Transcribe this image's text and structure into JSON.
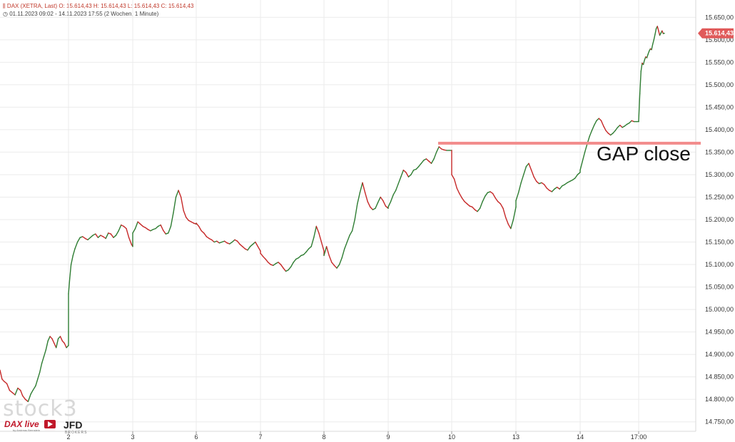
{
  "header": {
    "line1": "DAX (XETRA, Last)   O: 15.614,43   H: 15.614,43   L: 15.614,43   C: 15.614,43",
    "line2": "01.11.2023 09:02 - 14.11.2023 17:55   (2 Wochen, 1 Minute)"
  },
  "price_label": "15.614,43",
  "annotation": "GAP close",
  "logos": {
    "stock3": "stock3",
    "daxlive": "DAX live",
    "daxlive_sub": "by Andreas Bernstein",
    "jfd": "JFD",
    "jfd_sub": "BROKERS"
  },
  "colors": {
    "up": "#2e7d32",
    "down": "#c62828",
    "gap_line": "#f28b8b",
    "price_tag": "#e05a5a",
    "grid": "#ebebeb"
  },
  "chart_data": {
    "type": "line",
    "title": "DAX (XETRA, Last)",
    "subtitle": "01.11.2023 09:02 - 14.11.2023 17:55 (2 Wochen, 1 Minute)",
    "xlabel": "",
    "ylabel": "",
    "ylim": [
      14740,
      15660
    ],
    "yticks": [
      14750,
      14800,
      14850,
      14900,
      14950,
      15000,
      15050,
      15100,
      15150,
      15200,
      15250,
      15300,
      15350,
      15400,
      15450,
      15500,
      15550,
      15600,
      15650
    ],
    "ytick_labels": [
      "14.750,00",
      "14.800,00",
      "14.850,00",
      "14.900,00",
      "14.950,00",
      "15.000,00",
      "15.050,00",
      "15.100,00",
      "15.150,00",
      "15.200,00",
      "15.250,00",
      "15.300,00",
      "15.350,00",
      "15.400,00",
      "15.450,00",
      "15.500,00",
      "15.550,00",
      "15.600,00",
      "15.650,00"
    ],
    "xlim": [
      0,
      10.96
    ],
    "xticks": [
      1,
      2,
      3,
      4,
      5,
      6,
      7,
      8,
      9,
      10
    ],
    "xtick_labels": [
      "2",
      "3",
      "6",
      "7",
      "8",
      "9",
      "10",
      "13",
      "14",
      "17:00"
    ],
    "grid": true,
    "last_value": 15614.43,
    "annotation": {
      "text": "GAP close",
      "level": 15370
    },
    "series": [
      {
        "points": [
          [
            0.0,
            14865
          ],
          [
            0.03,
            14845
          ],
          [
            0.06,
            14840
          ],
          [
            0.1,
            14835
          ],
          [
            0.14,
            14820
          ],
          [
            0.18,
            14815
          ],
          [
            0.22,
            14810
          ],
          [
            0.26,
            14825
          ],
          [
            0.3,
            14820
          ],
          [
            0.33,
            14808
          ],
          [
            0.37,
            14800
          ],
          [
            0.41,
            14795
          ],
          [
            0.45,
            14812
          ],
          [
            0.48,
            14820
          ],
          [
            0.52,
            14830
          ],
          [
            0.55,
            14845
          ],
          [
            0.58,
            14860
          ],
          [
            0.61,
            14880
          ],
          [
            0.64,
            14895
          ],
          [
            0.67,
            14910
          ],
          [
            0.7,
            14930
          ],
          [
            0.73,
            14940
          ],
          [
            0.76,
            14935
          ],
          [
            0.79,
            14925
          ],
          [
            0.82,
            14915
          ],
          [
            0.85,
            14935
          ],
          [
            0.88,
            14940
          ],
          [
            0.91,
            14930
          ],
          [
            0.94,
            14925
          ],
          [
            0.97,
            14915
          ],
          [
            1.0,
            14920
          ],
          [
            1.0,
            15035
          ],
          [
            1.02,
            15070
          ],
          [
            1.04,
            15100
          ],
          [
            1.07,
            15120
          ],
          [
            1.1,
            15135
          ],
          [
            1.14,
            15150
          ],
          [
            1.18,
            15160
          ],
          [
            1.22,
            15162
          ],
          [
            1.26,
            15158
          ],
          [
            1.3,
            15155
          ],
          [
            1.34,
            15160
          ],
          [
            1.38,
            15165
          ],
          [
            1.42,
            15168
          ],
          [
            1.46,
            15160
          ],
          [
            1.5,
            15165
          ],
          [
            1.54,
            15162
          ],
          [
            1.58,
            15158
          ],
          [
            1.62,
            15170
          ],
          [
            1.66,
            15168
          ],
          [
            1.7,
            15160
          ],
          [
            1.74,
            15165
          ],
          [
            1.78,
            15175
          ],
          [
            1.82,
            15188
          ],
          [
            1.86,
            15185
          ],
          [
            1.9,
            15180
          ],
          [
            1.94,
            15160
          ],
          [
            1.98,
            15145
          ],
          [
            2.0,
            15140
          ],
          [
            2.0,
            15170
          ],
          [
            2.04,
            15180
          ],
          [
            2.08,
            15195
          ],
          [
            2.12,
            15190
          ],
          [
            2.16,
            15185
          ],
          [
            2.2,
            15182
          ],
          [
            2.24,
            15178
          ],
          [
            2.28,
            15175
          ],
          [
            2.32,
            15178
          ],
          [
            2.36,
            15180
          ],
          [
            2.4,
            15185
          ],
          [
            2.44,
            15188
          ],
          [
            2.48,
            15176
          ],
          [
            2.52,
            15168
          ],
          [
            2.56,
            15170
          ],
          [
            2.6,
            15185
          ],
          [
            2.64,
            15215
          ],
          [
            2.68,
            15250
          ],
          [
            2.72,
            15265
          ],
          [
            2.76,
            15250
          ],
          [
            2.8,
            15220
          ],
          [
            2.84,
            15205
          ],
          [
            2.88,
            15198
          ],
          [
            2.92,
            15195
          ],
          [
            2.96,
            15192
          ],
          [
            3.0,
            15190
          ],
          [
            3.0,
            15192
          ],
          [
            3.04,
            15185
          ],
          [
            3.08,
            15175
          ],
          [
            3.12,
            15170
          ],
          [
            3.16,
            15162
          ],
          [
            3.2,
            15158
          ],
          [
            3.24,
            15155
          ],
          [
            3.28,
            15150
          ],
          [
            3.32,
            15152
          ],
          [
            3.36,
            15148
          ],
          [
            3.4,
            15150
          ],
          [
            3.44,
            15152
          ],
          [
            3.48,
            15148
          ],
          [
            3.52,
            15146
          ],
          [
            3.56,
            15150
          ],
          [
            3.6,
            15155
          ],
          [
            3.64,
            15152
          ],
          [
            3.68,
            15145
          ],
          [
            3.72,
            15140
          ],
          [
            3.76,
            15135
          ],
          [
            3.8,
            15132
          ],
          [
            3.84,
            15140
          ],
          [
            3.88,
            15145
          ],
          [
            3.92,
            15150
          ],
          [
            3.96,
            15140
          ],
          [
            4.0,
            15130
          ],
          [
            4.0,
            15125
          ],
          [
            4.04,
            15118
          ],
          [
            4.08,
            15112
          ],
          [
            4.12,
            15105
          ],
          [
            4.16,
            15100
          ],
          [
            4.2,
            15098
          ],
          [
            4.24,
            15102
          ],
          [
            4.28,
            15105
          ],
          [
            4.32,
            15100
          ],
          [
            4.36,
            15092
          ],
          [
            4.4,
            15085
          ],
          [
            4.44,
            15088
          ],
          [
            4.48,
            15095
          ],
          [
            4.52,
            15105
          ],
          [
            4.56,
            15112
          ],
          [
            4.6,
            15115
          ],
          [
            4.64,
            15120
          ],
          [
            4.68,
            15122
          ],
          [
            4.72,
            15128
          ],
          [
            4.76,
            15135
          ],
          [
            4.8,
            15140
          ],
          [
            4.84,
            15160
          ],
          [
            4.88,
            15185
          ],
          [
            4.92,
            15170
          ],
          [
            4.96,
            15150
          ],
          [
            5.0,
            15130
          ],
          [
            5.0,
            15120
          ],
          [
            5.04,
            15140
          ],
          [
            5.08,
            15120
          ],
          [
            5.12,
            15105
          ],
          [
            5.16,
            15098
          ],
          [
            5.2,
            15092
          ],
          [
            5.24,
            15100
          ],
          [
            5.28,
            15115
          ],
          [
            5.32,
            15135
          ],
          [
            5.36,
            15150
          ],
          [
            5.4,
            15165
          ],
          [
            5.44,
            15175
          ],
          [
            5.48,
            15200
          ],
          [
            5.52,
            15235
          ],
          [
            5.56,
            15260
          ],
          [
            5.6,
            15282
          ],
          [
            5.64,
            15260
          ],
          [
            5.68,
            15240
          ],
          [
            5.72,
            15228
          ],
          [
            5.76,
            15222
          ],
          [
            5.8,
            15225
          ],
          [
            5.84,
            15238
          ],
          [
            5.88,
            15250
          ],
          [
            5.92,
            15242
          ],
          [
            5.96,
            15230
          ],
          [
            6.0,
            15225
          ],
          [
            6.0,
            15228
          ],
          [
            6.04,
            15240
          ],
          [
            6.08,
            15255
          ],
          [
            6.12,
            15265
          ],
          [
            6.16,
            15280
          ],
          [
            6.2,
            15295
          ],
          [
            6.24,
            15310
          ],
          [
            6.28,
            15305
          ],
          [
            6.32,
            15295
          ],
          [
            6.36,
            15300
          ],
          [
            6.4,
            15310
          ],
          [
            6.44,
            15312
          ],
          [
            6.48,
            15318
          ],
          [
            6.52,
            15325
          ],
          [
            6.56,
            15332
          ],
          [
            6.6,
            15335
          ],
          [
            6.64,
            15330
          ],
          [
            6.68,
            15325
          ],
          [
            6.72,
            15335
          ],
          [
            6.76,
            15350
          ],
          [
            6.8,
            15362
          ],
          [
            6.84,
            15357
          ],
          [
            6.88,
            15355
          ],
          [
            6.92,
            15354
          ],
          [
            6.96,
            15354
          ],
          [
            7.0,
            15354
          ],
          [
            7.0,
            15300
          ],
          [
            7.04,
            15290
          ],
          [
            7.08,
            15270
          ],
          [
            7.12,
            15258
          ],
          [
            7.16,
            15248
          ],
          [
            7.2,
            15240
          ],
          [
            7.24,
            15235
          ],
          [
            7.28,
            15230
          ],
          [
            7.32,
            15228
          ],
          [
            7.36,
            15222
          ],
          [
            7.4,
            15218
          ],
          [
            7.44,
            15225
          ],
          [
            7.48,
            15240
          ],
          [
            7.52,
            15252
          ],
          [
            7.56,
            15260
          ],
          [
            7.6,
            15262
          ],
          [
            7.64,
            15258
          ],
          [
            7.68,
            15248
          ],
          [
            7.72,
            15240
          ],
          [
            7.76,
            15235
          ],
          [
            7.8,
            15225
          ],
          [
            7.84,
            15205
          ],
          [
            7.88,
            15190
          ],
          [
            7.92,
            15180
          ],
          [
            7.96,
            15200
          ],
          [
            8.0,
            15228
          ],
          [
            8.0,
            15242
          ],
          [
            8.04,
            15260
          ],
          [
            8.08,
            15282
          ],
          [
            8.12,
            15300
          ],
          [
            8.16,
            15318
          ],
          [
            8.2,
            15325
          ],
          [
            8.24,
            15310
          ],
          [
            8.28,
            15295
          ],
          [
            8.32,
            15285
          ],
          [
            8.36,
            15280
          ],
          [
            8.4,
            15282
          ],
          [
            8.44,
            15278
          ],
          [
            8.48,
            15270
          ],
          [
            8.52,
            15265
          ],
          [
            8.56,
            15262
          ],
          [
            8.6,
            15268
          ],
          [
            8.64,
            15272
          ],
          [
            8.68,
            15268
          ],
          [
            8.72,
            15275
          ],
          [
            8.76,
            15278
          ],
          [
            8.8,
            15282
          ],
          [
            8.84,
            15285
          ],
          [
            8.88,
            15288
          ],
          [
            8.92,
            15292
          ],
          [
            8.96,
            15300
          ],
          [
            9.0,
            15305
          ],
          [
            9.0,
            15310
          ],
          [
            9.04,
            15330
          ],
          [
            9.08,
            15350
          ],
          [
            9.12,
            15368
          ],
          [
            9.16,
            15385
          ],
          [
            9.2,
            15398
          ],
          [
            9.24,
            15410
          ],
          [
            9.28,
            15420
          ],
          [
            9.32,
            15425
          ],
          [
            9.36,
            15420
          ],
          [
            9.4,
            15408
          ],
          [
            9.44,
            15398
          ],
          [
            9.48,
            15392
          ],
          [
            9.52,
            15388
          ],
          [
            9.56,
            15392
          ],
          [
            9.6,
            15398
          ],
          [
            9.64,
            15405
          ],
          [
            9.68,
            15410
          ],
          [
            9.72,
            15405
          ],
          [
            9.76,
            15408
          ],
          [
            9.8,
            15412
          ],
          [
            9.84,
            15415
          ],
          [
            9.88,
            15420
          ],
          [
            9.92,
            15418
          ],
          [
            9.96,
            15418
          ],
          [
            10.0,
            15418
          ],
          [
            10.0,
            15420
          ],
          [
            10.02,
            15480
          ],
          [
            10.04,
            15530
          ],
          [
            10.06,
            15548
          ],
          [
            10.08,
            15545
          ],
          [
            10.1,
            15555
          ],
          [
            10.12,
            15562
          ],
          [
            10.14,
            15560
          ],
          [
            10.16,
            15568
          ],
          [
            10.18,
            15575
          ],
          [
            10.2,
            15580
          ],
          [
            10.22,
            15578
          ],
          [
            10.24,
            15590
          ],
          [
            10.26,
            15600
          ],
          [
            10.28,
            15612
          ],
          [
            10.3,
            15625
          ],
          [
            10.32,
            15630
          ],
          [
            10.34,
            15620
          ],
          [
            10.36,
            15610
          ],
          [
            10.38,
            15615
          ],
          [
            10.4,
            15620
          ],
          [
            10.42,
            15614
          ],
          [
            10.44,
            15614.43
          ]
        ]
      }
    ]
  }
}
